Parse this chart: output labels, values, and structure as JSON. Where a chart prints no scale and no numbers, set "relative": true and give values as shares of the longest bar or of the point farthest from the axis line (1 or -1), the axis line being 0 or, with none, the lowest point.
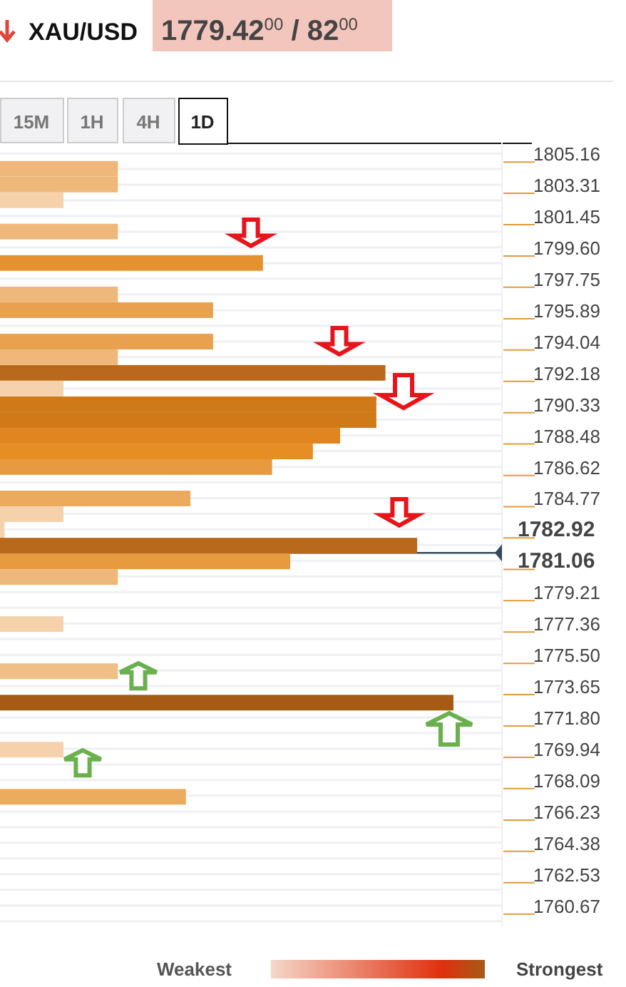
{
  "chart_data": {
    "type": "bar",
    "orientation": "horizontal",
    "relative": true,
    "title": "XAU/USD",
    "subtitle": "1779.42$^{00}$ / 82$^{00}$",
    "annotations": [
      "15M",
      "1H",
      "4H",
      "1D",
      "Weakest",
      "Strongest"
    ],
    "x": [
      1804.25,
      1803.32,
      1802.39,
      1800.54,
      1798.68,
      1796.82,
      1795.89,
      1794.03,
      1793.11,
      1792.18,
      1791.25,
      1790.32,
      1789.39,
      1788.46,
      1787.53,
      1786.61,
      1784.75,
      1783.82,
      1782.89,
      1781.96,
      1781.03,
      1780.1,
      1777.32,
      1774.53,
      1772.67,
      1769.89,
      1767.1
    ],
    "values": [
      0.26,
      0.26,
      0.14,
      0.26,
      0.58,
      0.26,
      0.47,
      0.47,
      0.26,
      0.85,
      0.14,
      0.83,
      0.83,
      0.75,
      0.69,
      0.6,
      0.42,
      0.14,
      0.01,
      0.92,
      0.64,
      0.26,
      0.14,
      0.26,
      1,
      0.14,
      0.41
    ],
    "colors": [
      "#eeb87a",
      "#eeb87a",
      "#f5d2ab",
      "#eeb87a",
      "#e6912f",
      "#eeb87a",
      "#e9a04f",
      "#e9a04f",
      "#eeb87a",
      "#b8691c",
      "#f5d2ab",
      "#cf7919",
      "#cf7919",
      "#e0851f",
      "#e68d24",
      "#e79a3e",
      "#ecaa5c",
      "#f5d2ab",
      "#f5d2ab",
      "#b8691c",
      "#e79a3e",
      "#eeb87a",
      "#f5d2ab",
      "#f0bf88",
      "#a65b15",
      "#f5d2ab",
      "#ecab5e"
    ],
    "ylim": [
      1759.9,
      1805.8
    ],
    "yticks": [
      1805.16,
      1803.31,
      1801.45,
      {
        "value": 1799.6,
        "label": "1799.60"
      },
      1797.75,
      1795.89,
      1794.04,
      1792.18,
      1790.33,
      1788.48,
      1786.62,
      1784.77,
      1782.92,
      1781.06,
      1779.21,
      1777.36,
      {
        "value": 1775.5,
        "label": "1775.50"
      },
      1773.65,
      {
        "value": 1771.8,
        "label": "1771.80"
      },
      1769.94,
      1768.09,
      1766.23,
      1764.38,
      1762.53,
      1760.67
    ],
    "grid": "y",
    "ref_lines": [
      {
        "axis": "y",
        "value": 1781.53,
        "color": "#34495e"
      }
    ]
  }
}
